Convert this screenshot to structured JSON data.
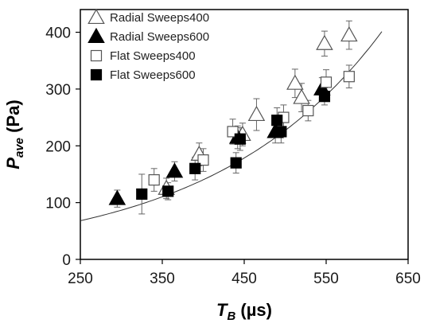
{
  "chart_data": {
    "type": "scatter",
    "title": "",
    "xlabel": {
      "main": "T",
      "sub": "B",
      "unit": " (µs)"
    },
    "ylabel": {
      "main": "P",
      "sub": "ave",
      "unit": " (Pa)"
    },
    "xlim": [
      250,
      650
    ],
    "ylim": [
      0,
      440
    ],
    "x_ticks": [
      250,
      350,
      450,
      550,
      650
    ],
    "y_ticks": [
      0,
      100,
      200,
      300,
      400
    ],
    "grid": false,
    "legend_position": "top-left",
    "series": [
      {
        "name": "Radial Sweeps400",
        "marker": "triangle-open",
        "points": [
          {
            "x": 355,
            "y": 125,
            "err": 18
          },
          {
            "x": 395,
            "y": 185,
            "err": 20
          },
          {
            "x": 448,
            "y": 220,
            "err": 20
          },
          {
            "x": 465,
            "y": 255,
            "err": 28
          },
          {
            "x": 512,
            "y": 310,
            "err": 25
          },
          {
            "x": 520,
            "y": 285,
            "err": 25
          },
          {
            "x": 548,
            "y": 380,
            "err": 22
          },
          {
            "x": 578,
            "y": 395,
            "err": 25
          }
        ]
      },
      {
        "name": "Radial Sweeps600",
        "marker": "triangle-filled",
        "points": [
          {
            "x": 295,
            "y": 107,
            "err": 15
          },
          {
            "x": 365,
            "y": 155,
            "err": 17
          },
          {
            "x": 442,
            "y": 215,
            "err": 20
          },
          {
            "x": 488,
            "y": 225,
            "err": 20
          },
          {
            "x": 545,
            "y": 300,
            "err": 20
          }
        ]
      },
      {
        "name": "Flat Sweeps400",
        "marker": "square-open",
        "points": [
          {
            "x": 340,
            "y": 140,
            "err": 20
          },
          {
            "x": 400,
            "y": 175,
            "err": 20
          },
          {
            "x": 436,
            "y": 225,
            "err": 22
          },
          {
            "x": 498,
            "y": 250,
            "err": 22
          },
          {
            "x": 528,
            "y": 262,
            "err": 18
          },
          {
            "x": 550,
            "y": 312,
            "err": 22
          },
          {
            "x": 578,
            "y": 322,
            "err": 20
          }
        ]
      },
      {
        "name": "Flat Sweeps600",
        "marker": "square-filled",
        "points": [
          {
            "x": 325,
            "y": 115,
            "err": 35
          },
          {
            "x": 357,
            "y": 120,
            "err": 15
          },
          {
            "x": 390,
            "y": 160,
            "err": 20
          },
          {
            "x": 440,
            "y": 170,
            "err": 18
          },
          {
            "x": 445,
            "y": 212,
            "err": 20
          },
          {
            "x": 490,
            "y": 245,
            "err": 22
          },
          {
            "x": 495,
            "y": 225,
            "err": 20
          },
          {
            "x": 548,
            "y": 287,
            "err": 15
          }
        ]
      }
    ],
    "fit_curve": {
      "type": "exponential",
      "a": 20.4,
      "b": 0.00482,
      "x_from": 250,
      "x_to": 620
    }
  }
}
